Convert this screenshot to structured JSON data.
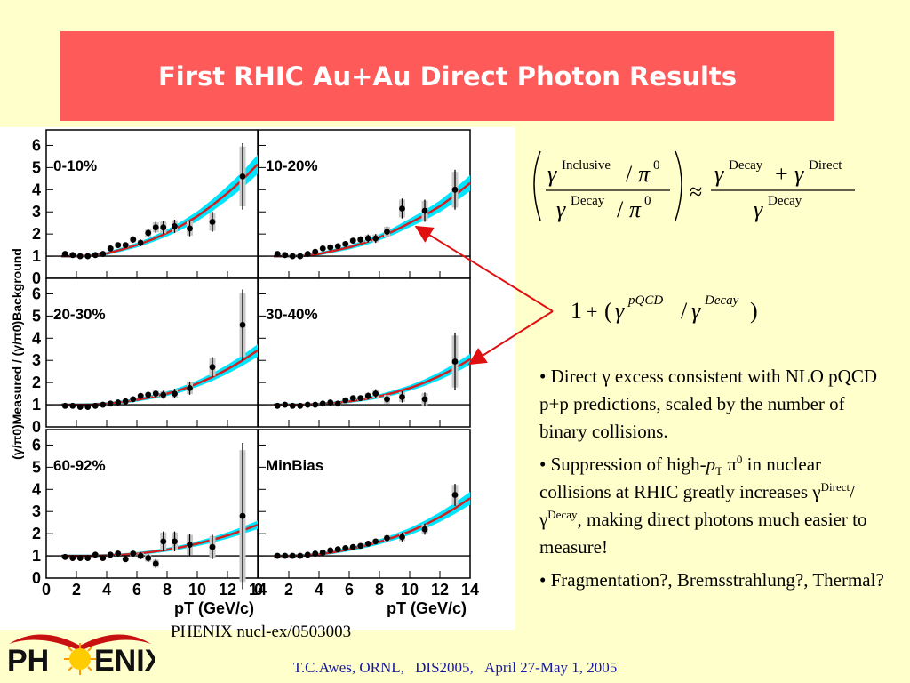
{
  "slide": {
    "title": "First RHIC Au+Au Direct Photon Results",
    "source": "PHENIX nucl-ex/0503003",
    "footer": {
      "author": "T.C.Awes, ORNL,",
      "conference": "DIS2005,",
      "dates": "April 27-May 1, 2005"
    },
    "logo": {
      "left": "PH",
      "right": "ENIX"
    },
    "equation1": {
      "gamma": "γ",
      "inclusive": "Inclusive",
      "decay": "Decay",
      "direct": "Direct",
      "pi": "π",
      "zero": "0",
      "slash": "/",
      "approx": "≈",
      "plus": "+"
    },
    "equation2": {
      "one": "1",
      "plus": "+",
      "open": "(",
      "close": ")",
      "gamma": "γ",
      "pqcd": "pQCD",
      "decay": "Decay",
      "slash": "/"
    },
    "bullets": {
      "b1_pre": "• Direct ",
      "b1_gamma": "γ",
      "b1_post": " excess consistent with NLO pQCD p+p predictions, scaled by the number of binary collisions.",
      "b2_pre": "• Suppression of high-",
      "b2_p": "p",
      "b2_T": "T",
      "b2_pi": " π",
      "b2_0": "0",
      "b2_mid": " in nuclear collisions at RHIC greatly increases ",
      "b2_g1": "γ",
      "b2_direct": "Direct",
      "b2_slash": "/γ",
      "b2_decay": "Decay",
      "b2_post": ", making direct photons much easier to measure!",
      "b3": "• Fragmentation?, Bremsstrahlung?, Thermal?"
    }
  },
  "chart_data": {
    "type": "scatter",
    "ylabel": "(γ/π0)Measured / (γ/π0)Background",
    "xlabel": "pT (GeV/c)",
    "xlim": [
      0,
      14
    ],
    "ylim": [
      0,
      6.7
    ],
    "x_ticks": [
      0,
      2,
      4,
      6,
      8,
      10,
      12,
      14
    ],
    "y_ticks": [
      0,
      1,
      2,
      3,
      4,
      5,
      6
    ],
    "reference_line": 1,
    "panels": [
      {
        "label": "0-10%",
        "x": [
          1.25,
          1.75,
          2.25,
          2.75,
          3.25,
          3.75,
          4.25,
          4.75,
          5.25,
          5.75,
          6.25,
          6.75,
          7.25,
          7.75,
          8.5,
          9.5,
          11,
          13
        ],
        "y": [
          1.1,
          1.05,
          1.0,
          1.0,
          1.05,
          1.1,
          1.35,
          1.5,
          1.5,
          1.75,
          1.6,
          2.05,
          2.3,
          2.3,
          2.35,
          2.25,
          2.55,
          4.6
        ],
        "err": [
          0.05,
          0.05,
          0.05,
          0.05,
          0.05,
          0.06,
          0.1,
          0.12,
          0.12,
          0.15,
          0.15,
          0.2,
          0.25,
          0.3,
          0.3,
          0.35,
          0.45,
          1.5
        ],
        "curve_x": [
          1,
          2,
          3,
          4,
          5,
          6,
          7,
          8,
          9,
          10,
          11,
          12,
          13,
          14
        ],
        "curve_y": [
          1.0,
          1.0,
          1.03,
          1.12,
          1.3,
          1.5,
          1.75,
          2.05,
          2.4,
          2.8,
          3.3,
          3.85,
          4.45,
          5.15
        ]
      },
      {
        "label": "10-20%",
        "x": [
          1.25,
          1.75,
          2.25,
          2.75,
          3.25,
          3.75,
          4.25,
          4.75,
          5.25,
          5.75,
          6.25,
          6.75,
          7.25,
          7.75,
          8.5,
          9.5,
          11,
          13
        ],
        "y": [
          1.1,
          1.05,
          1.0,
          1.0,
          1.1,
          1.2,
          1.35,
          1.4,
          1.45,
          1.55,
          1.7,
          1.75,
          1.8,
          1.8,
          2.1,
          3.15,
          3.05,
          4.0
        ],
        "err": [
          0.05,
          0.05,
          0.05,
          0.05,
          0.05,
          0.06,
          0.08,
          0.1,
          0.1,
          0.12,
          0.12,
          0.15,
          0.18,
          0.2,
          0.25,
          0.45,
          0.5,
          0.9
        ],
        "curve_x": [
          1,
          2,
          3,
          4,
          5,
          6,
          7,
          8,
          9,
          10,
          11,
          12,
          13,
          14
        ],
        "curve_y": [
          1.0,
          1.0,
          1.02,
          1.1,
          1.25,
          1.4,
          1.6,
          1.85,
          2.15,
          2.5,
          2.85,
          3.25,
          3.75,
          4.3
        ]
      },
      {
        "label": "20-30%",
        "x": [
          1.25,
          1.75,
          2.25,
          2.75,
          3.25,
          3.75,
          4.25,
          4.75,
          5.25,
          5.75,
          6.25,
          6.75,
          7.25,
          7.75,
          8.5,
          9.5,
          11,
          13
        ],
        "y": [
          0.95,
          0.95,
          0.9,
          0.9,
          0.95,
          1.0,
          1.05,
          1.1,
          1.15,
          1.25,
          1.4,
          1.45,
          1.5,
          1.45,
          1.5,
          1.75,
          2.7,
          4.6
        ],
        "err": [
          0.04,
          0.04,
          0.04,
          0.04,
          0.04,
          0.05,
          0.06,
          0.07,
          0.08,
          0.1,
          0.1,
          0.12,
          0.15,
          0.18,
          0.22,
          0.3,
          0.45,
          1.6
        ],
        "curve_x": [
          1,
          2,
          3,
          4,
          5,
          6,
          7,
          8,
          9,
          10,
          11,
          12,
          13,
          14
        ],
        "curve_y": [
          1.0,
          1.0,
          1.01,
          1.05,
          1.12,
          1.22,
          1.35,
          1.5,
          1.7,
          1.95,
          2.25,
          2.6,
          3.0,
          3.45
        ]
      },
      {
        "label": "30-40%",
        "x": [
          1.25,
          1.75,
          2.25,
          2.75,
          3.25,
          3.75,
          4.25,
          4.75,
          5.25,
          5.75,
          6.25,
          6.75,
          7.25,
          7.75,
          8.5,
          9.5,
          11,
          13
        ],
        "y": [
          0.95,
          1.0,
          0.95,
          0.95,
          1.0,
          1.0,
          1.05,
          1.1,
          1.05,
          1.2,
          1.3,
          1.3,
          1.4,
          1.5,
          1.25,
          1.35,
          1.25,
          2.95
        ],
        "err": [
          0.04,
          0.04,
          0.04,
          0.04,
          0.05,
          0.05,
          0.06,
          0.07,
          0.08,
          0.1,
          0.1,
          0.12,
          0.15,
          0.2,
          0.22,
          0.25,
          0.3,
          1.3
        ],
        "curve_x": [
          1,
          2,
          3,
          4,
          5,
          6,
          7,
          8,
          9,
          10,
          11,
          12,
          13,
          14
        ],
        "curve_y": [
          1.0,
          1.0,
          1.0,
          1.03,
          1.08,
          1.15,
          1.25,
          1.38,
          1.55,
          1.75,
          2.0,
          2.3,
          2.65,
          3.05
        ]
      },
      {
        "label": "60-92%",
        "x": [
          1.25,
          1.75,
          2.25,
          2.75,
          3.25,
          3.75,
          4.25,
          4.75,
          5.25,
          5.75,
          6.25,
          6.75,
          7.25,
          7.75,
          8.5,
          9.5,
          11,
          13
        ],
        "y": [
          0.95,
          0.9,
          0.9,
          0.9,
          1.05,
          0.9,
          1.05,
          1.1,
          0.85,
          1.1,
          1.0,
          0.9,
          0.65,
          1.65,
          1.65,
          1.5,
          1.4,
          2.8
        ],
        "err": [
          0.05,
          0.05,
          0.05,
          0.05,
          0.06,
          0.06,
          0.08,
          0.1,
          0.1,
          0.12,
          0.15,
          0.18,
          0.2,
          0.45,
          0.45,
          0.5,
          0.55,
          3.3
        ],
        "curve_x": [
          1,
          2,
          3,
          4,
          5,
          6,
          7,
          8,
          9,
          10,
          11,
          12,
          13,
          14
        ],
        "curve_y": [
          1.0,
          1.0,
          1.0,
          1.02,
          1.05,
          1.1,
          1.18,
          1.28,
          1.4,
          1.55,
          1.72,
          1.92,
          2.15,
          2.4
        ]
      },
      {
        "label": "MinBias",
        "x": [
          1.25,
          1.75,
          2.25,
          2.75,
          3.25,
          3.75,
          4.25,
          4.75,
          5.25,
          5.75,
          6.25,
          6.75,
          7.25,
          7.75,
          8.5,
          9.5,
          11,
          13
        ],
        "y": [
          1.0,
          1.0,
          1.0,
          1.0,
          1.05,
          1.1,
          1.15,
          1.25,
          1.3,
          1.35,
          1.4,
          1.45,
          1.55,
          1.65,
          1.8,
          1.85,
          2.2,
          3.75
        ],
        "err": [
          0.03,
          0.03,
          0.03,
          0.03,
          0.03,
          0.04,
          0.05,
          0.05,
          0.06,
          0.07,
          0.08,
          0.1,
          0.1,
          0.12,
          0.15,
          0.2,
          0.25,
          0.5
        ],
        "curve_x": [
          1,
          2,
          3,
          4,
          5,
          6,
          7,
          8,
          9,
          10,
          11,
          12,
          13,
          14
        ],
        "curve_y": [
          1.0,
          1.0,
          1.02,
          1.07,
          1.17,
          1.3,
          1.45,
          1.63,
          1.85,
          2.1,
          2.4,
          2.75,
          3.15,
          3.6
        ]
      }
    ]
  }
}
